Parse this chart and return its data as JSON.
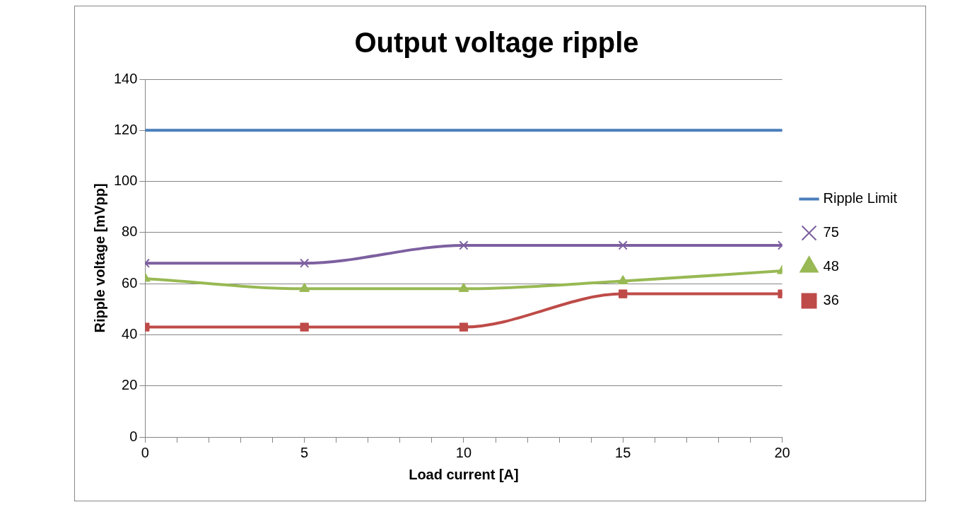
{
  "chart_data": {
    "type": "line",
    "title": "Output voltage ripple",
    "xlabel": "Load current [A]",
    "ylabel": "Ripple voltage [mVpp]",
    "x": [
      0,
      5,
      10,
      15,
      20
    ],
    "series": [
      {
        "name": "Ripple Limit",
        "color": "#4a7ebb",
        "values": [
          120,
          120,
          120,
          120,
          120
        ],
        "marker": "none"
      },
      {
        "name": "75",
        "color": "#7d60a0",
        "values": [
          68,
          68,
          75,
          75,
          75
        ],
        "marker": "cross"
      },
      {
        "name": "48",
        "color": "#98b954",
        "values": [
          62,
          58,
          58,
          61,
          65
        ],
        "marker": "triangle"
      },
      {
        "name": "36",
        "color": "#be4b48",
        "values": [
          43,
          43,
          43,
          56,
          56
        ],
        "marker": "square"
      }
    ],
    "xlim": [
      0,
      20
    ],
    "xticks": [
      0,
      {
        "value": 1,
        "label": null
      },
      {
        "value": 2,
        "label": null
      },
      {
        "value": 3,
        "label": null
      },
      {
        "value": 4,
        "label": null
      },
      5,
      {
        "value": 6,
        "label": null
      },
      {
        "value": 7,
        "label": null
      },
      {
        "value": 8,
        "label": null
      },
      {
        "value": 9,
        "label": null
      },
      10,
      {
        "value": 11,
        "label": null
      },
      {
        "value": 12,
        "label": null
      },
      {
        "value": 13,
        "label": null
      },
      {
        "value": 14,
        "label": null
      },
      15,
      {
        "value": 16,
        "label": null
      },
      {
        "value": 17,
        "label": null
      },
      {
        "value": 18,
        "label": null
      },
      {
        "value": 19,
        "label": null
      },
      20
    ],
    "ylim": [
      0,
      140
    ],
    "yticks": [
      0,
      20,
      40,
      60,
      80,
      100,
      120,
      140
    ],
    "grid": "y",
    "legend": "right",
    "line_style": "solid"
  }
}
